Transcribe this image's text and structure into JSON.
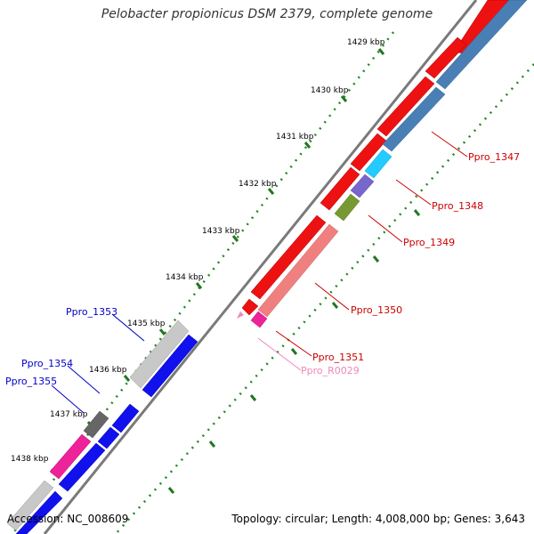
{
  "title": "Pelobacter propionicus DSM 2379, complete genome",
  "accession": "Accession: NC_008609",
  "summary": "Topology: circular; Length: 4,008,000 bp; Genes: 3,643",
  "kbp_labels": [
    {
      "text": "1429 kbp",
      "value": 1429
    },
    {
      "text": "1430 kbp",
      "value": 1430
    },
    {
      "text": "1431 kbp",
      "value": 1431
    },
    {
      "text": "1432 kbp",
      "value": 1432
    },
    {
      "text": "1433 kbp",
      "value": 1433
    },
    {
      "text": "1434 kbp",
      "value": 1434
    },
    {
      "text": "1435 kbp",
      "value": 1435
    },
    {
      "text": "1436 kbp",
      "value": 1436
    },
    {
      "text": "1437 kbp",
      "value": 1437
    },
    {
      "text": "1438 kbp",
      "value": 1438
    }
  ],
  "gene_labels": [
    {
      "text": "Ppro_1347",
      "color": "#cc0000"
    },
    {
      "text": "Ppro_1348",
      "color": "#cc0000"
    },
    {
      "text": "Ppro_1349",
      "color": "#cc0000"
    },
    {
      "text": "Ppro_1350",
      "color": "#cc0000"
    },
    {
      "text": "Ppro_1351",
      "color": "#cc0000"
    },
    {
      "text": "Ppro_R0029",
      "color": "#ee88bb"
    },
    {
      "text": "Ppro_1353",
      "color": "#0000cc"
    },
    {
      "text": "Ppro_1354",
      "color": "#0000cc"
    },
    {
      "text": "Ppro_1355",
      "color": "#0000cc"
    }
  ],
  "colors": {
    "forward_cds": "#ee1111",
    "reverse_cds": "#1111ee",
    "cog_blue": "#4a7fb5",
    "cog_cyan": "#22ccff",
    "cog_purple": "#7766cc",
    "cog_olive": "#779933",
    "light_red": "#f08080",
    "magenta": "#ee2299",
    "gray": "#c8c8c8",
    "dark_gray": "#666666",
    "tick_green": "#228822",
    "backbone": "#888888"
  }
}
